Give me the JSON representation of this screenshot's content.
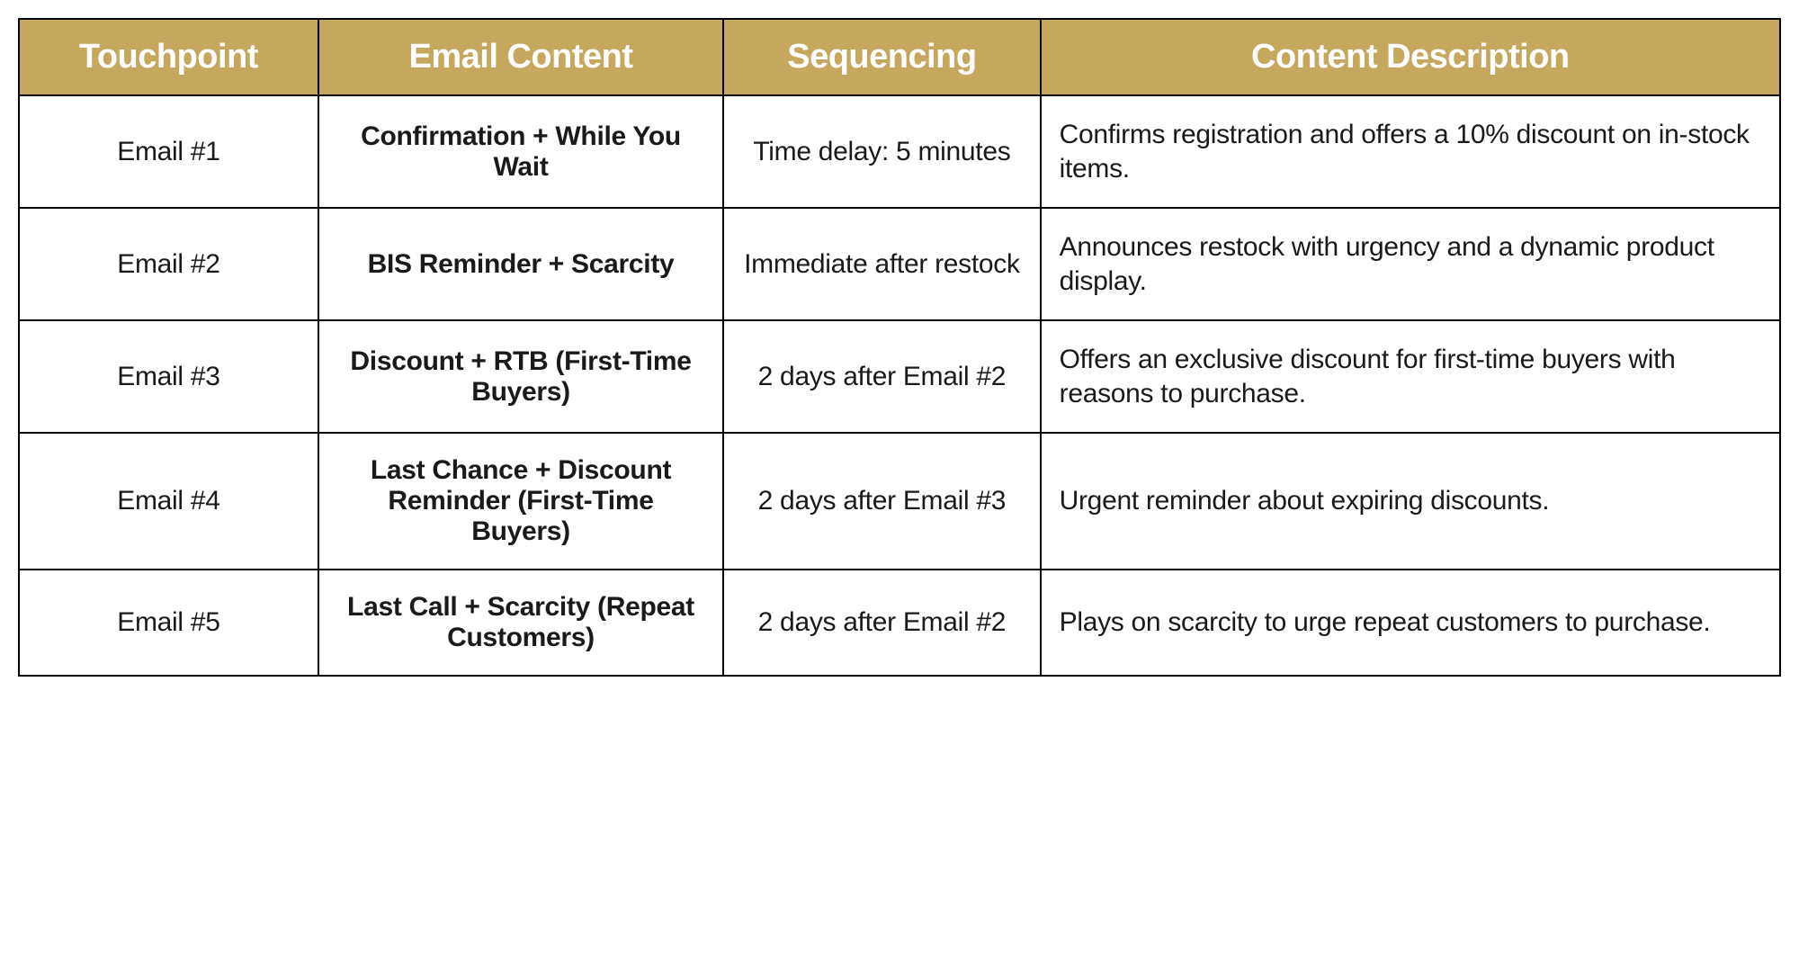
{
  "table": {
    "header_bg_color": "#c5a85e",
    "header_text_color": "#ffffff",
    "border_color": "#000000",
    "body_text_color": "#1a1a1a",
    "columns": [
      {
        "key": "touchpoint",
        "label": "Touchpoint",
        "width_pct": 17,
        "align": "center"
      },
      {
        "key": "email_content",
        "label": "Email Content",
        "width_pct": 23,
        "align": "center",
        "bold": true
      },
      {
        "key": "sequencing",
        "label": "Sequencing",
        "width_pct": 18,
        "align": "center"
      },
      {
        "key": "description",
        "label": "Content Description",
        "width_pct": 42,
        "align": "left"
      }
    ],
    "rows": [
      {
        "touchpoint": "Email #1",
        "email_content": "Confirmation + While You Wait",
        "sequencing": "Time delay: 5 minutes",
        "description": "Confirms registration and offers a 10% discount on in-stock items."
      },
      {
        "touchpoint": "Email #2",
        "email_content": "BIS Reminder + Scarcity",
        "sequencing": "Immediate after restock",
        "description": "Announces restock with urgency and a dynamic product display."
      },
      {
        "touchpoint": "Email #3",
        "email_content": "Discount + RTB (First-Time Buyers)",
        "sequencing": "2 days after Email #2",
        "description": "Offers an exclusive discount for first-time buyers with reasons to purchase."
      },
      {
        "touchpoint": "Email #4",
        "email_content": "Last Chance + Discount Reminder (First-Time Buyers)",
        "sequencing": "2 days after Email #3",
        "description": "Urgent reminder about expiring discounts."
      },
      {
        "touchpoint": "Email #5",
        "email_content": "Last Call + Scarcity (Repeat Customers)",
        "sequencing": "2 days after Email #2",
        "description": "Plays on scarcity to urge repeat customers to purchase."
      }
    ]
  }
}
